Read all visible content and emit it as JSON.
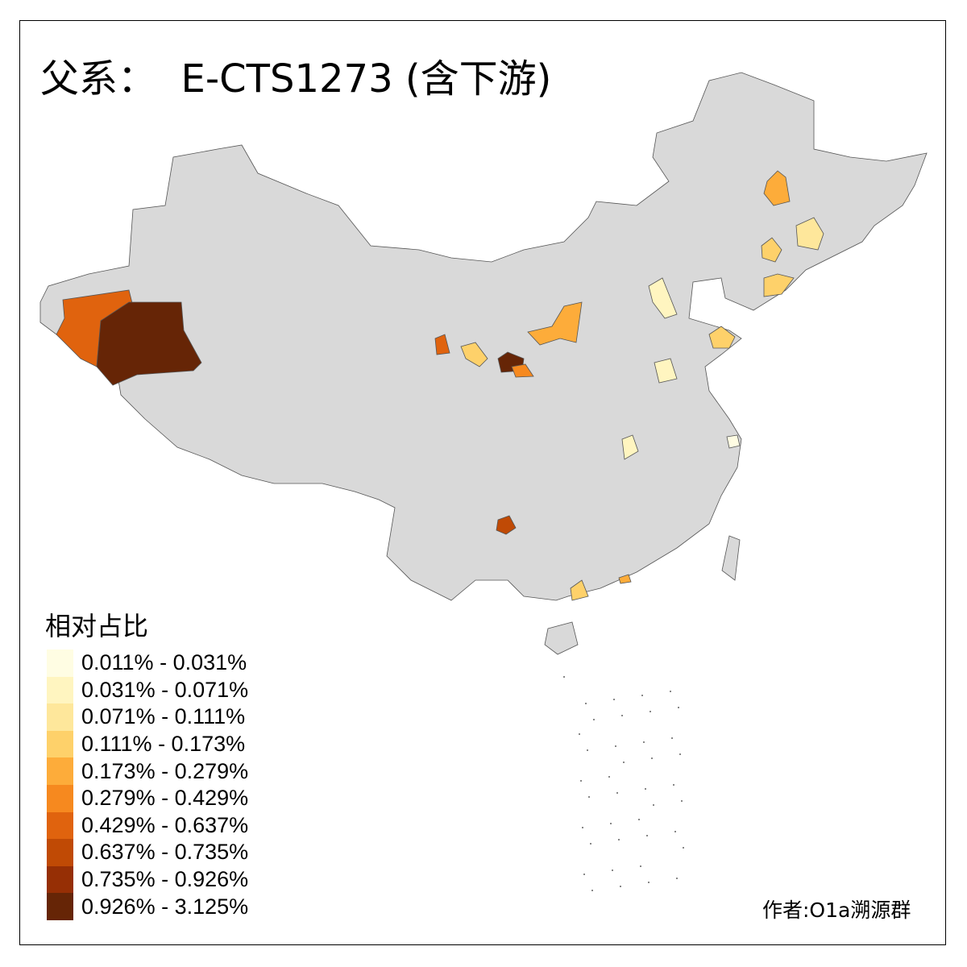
{
  "title": "父系：  E-CTS1273 (含下游)",
  "legend": {
    "title": "相对占比",
    "items": [
      {
        "label": "0.011% - 0.031%",
        "color": "#FFFDE3"
      },
      {
        "label": "0.031% - 0.071%",
        "color": "#FFF5C0"
      },
      {
        "label": "0.071% - 0.111%",
        "color": "#FEE79B"
      },
      {
        "label": "0.111% - 0.173%",
        "color": "#FED16A"
      },
      {
        "label": "0.173% - 0.279%",
        "color": "#FDAC3A"
      },
      {
        "label": "0.279% - 0.429%",
        "color": "#F6891F"
      },
      {
        "label": "0.429% - 0.637%",
        "color": "#E0630E"
      },
      {
        "label": "0.637% - 0.735%",
        "color": "#C04A05"
      },
      {
        "label": "0.735% - 0.926%",
        "color": "#962F05"
      },
      {
        "label": "0.926% - 3.125%",
        "color": "#662506"
      }
    ]
  },
  "map": {
    "base_color": "#D9D9D9",
    "border_color": "#555555"
  },
  "credit": "作者:O1a溯源群"
}
